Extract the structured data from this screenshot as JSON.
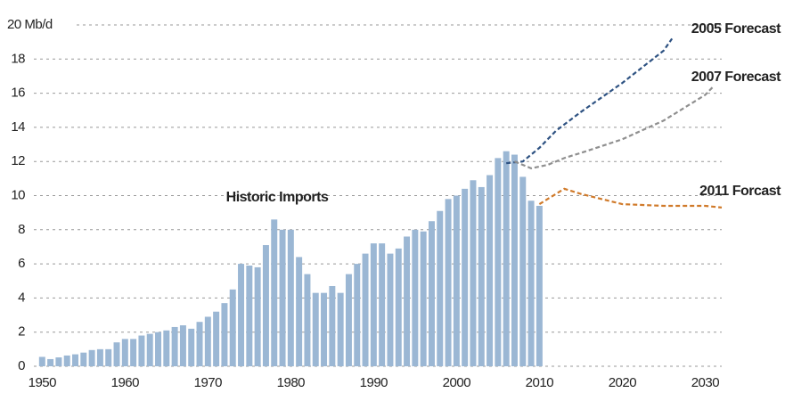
{
  "chart_data": {
    "type": "bar",
    "annotation": "Historic Imports",
    "color": "#9bb7d4",
    "x": [
      1950,
      1951,
      1952,
      1953,
      1954,
      1955,
      1956,
      1957,
      1958,
      1959,
      1960,
      1961,
      1962,
      1963,
      1964,
      1965,
      1966,
      1967,
      1968,
      1969,
      1970,
      1971,
      1972,
      1973,
      1974,
      1975,
      1976,
      1977,
      1978,
      1979,
      1980,
      1981,
      1982,
      1983,
      1984,
      1985,
      1986,
      1987,
      1988,
      1989,
      1990,
      1991,
      1992,
      1993,
      1994,
      1995,
      1996,
      1997,
      1998,
      1999,
      2000,
      2001,
      2002,
      2003,
      2004,
      2005,
      2006,
      2007,
      2008,
      2009,
      2010
    ],
    "values": [
      0.55,
      0.42,
      0.52,
      0.63,
      0.7,
      0.8,
      0.95,
      1.0,
      1.0,
      1.4,
      1.6,
      1.6,
      1.8,
      1.9,
      2.0,
      2.1,
      2.3,
      2.4,
      2.2,
      2.6,
      2.9,
      3.2,
      3.7,
      4.5,
      6.0,
      5.9,
      5.8,
      7.1,
      8.6,
      8.0,
      8.0,
      6.4,
      5.4,
      4.3,
      4.3,
      4.7,
      4.3,
      5.4,
      6.0,
      6.6,
      7.2,
      7.2,
      6.6,
      6.9,
      7.6,
      8.0,
      7.9,
      8.5,
      9.1,
      9.8,
      10.0,
      10.4,
      10.9,
      10.5,
      11.2,
      12.2,
      12.6,
      12.4,
      11.1,
      9.7,
      9.4
    ],
    "series": [
      {
        "name": "2005 Forecast",
        "color": "#2e5282",
        "x": [
          2006,
          2008,
          2010,
          2012,
          2015,
          2020,
          2025,
          2026
        ],
        "values": [
          11.9,
          12.0,
          12.8,
          13.8,
          14.9,
          16.6,
          18.5,
          19.2
        ]
      },
      {
        "name": "2007 Forecast",
        "color": "#8f8f8f",
        "x": [
          2007,
          2009,
          2011,
          2013,
          2015,
          2020,
          2025,
          2030,
          2031
        ],
        "values": [
          12.0,
          11.6,
          11.8,
          12.2,
          12.5,
          13.3,
          14.4,
          15.9,
          16.4
        ]
      },
      {
        "name": "2011 Forcast",
        "color": "#d07a2a",
        "x": [
          2010,
          2013,
          2015,
          2020,
          2025,
          2030,
          2032
        ],
        "values": [
          9.5,
          10.4,
          10.1,
          9.5,
          9.4,
          9.4,
          9.3
        ]
      }
    ],
    "xlim": [
      1949,
      2032
    ],
    "xticks": [
      1950,
      1960,
      1970,
      1980,
      1990,
      2000,
      2010,
      2020,
      2030
    ],
    "ylim": [
      0,
      20
    ],
    "yticks": [
      0,
      2,
      4,
      6,
      8,
      10,
      12,
      14,
      16,
      18,
      {
        "value": 20,
        "label": "20 Mb/d"
      }
    ],
    "grid": true
  }
}
